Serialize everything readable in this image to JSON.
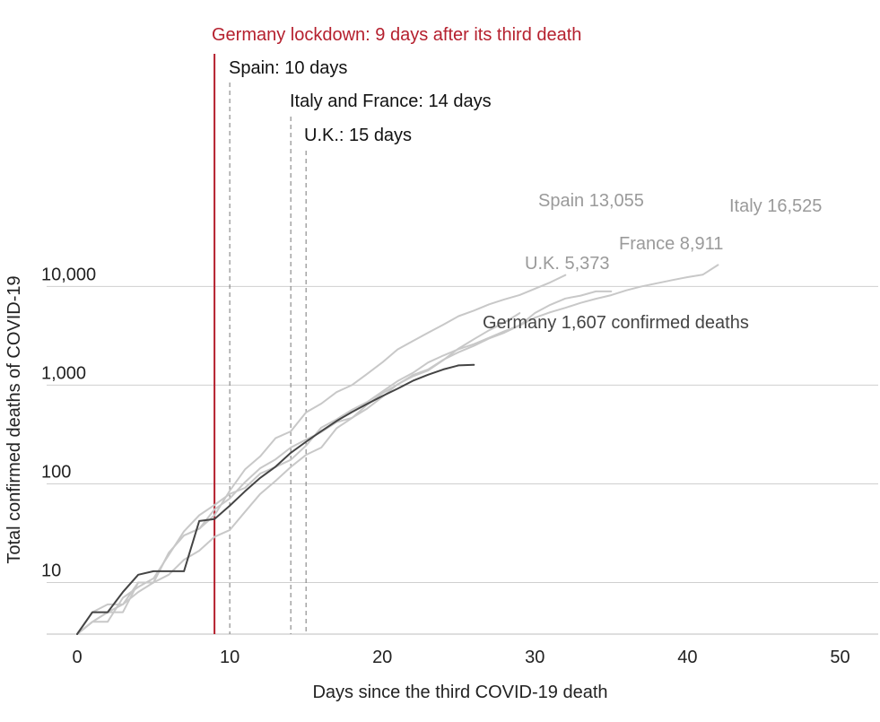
{
  "chart_data": {
    "type": "line",
    "xlabel": "Days since the third COVID-19 death",
    "ylabel": "Total confirmed deaths of COVID-19",
    "x_ticks": [
      0,
      10,
      20,
      30,
      40,
      50
    ],
    "y_ticks": [
      10,
      100,
      1000,
      10000
    ],
    "y_tick_labels": [
      "10",
      "100",
      "1,000",
      "10,000"
    ],
    "xlim": [
      -2,
      52.5
    ],
    "ylim": [
      3,
      8000000
    ],
    "yscale": "log",
    "grid": "horizontal",
    "lockdown": {
      "x": 9,
      "label": "Germany lockdown: 9 days after its third death",
      "color": "#b5202e"
    },
    "reference_lines": [
      {
        "x": 10,
        "label": "Spain: 10 days"
      },
      {
        "x": 14,
        "label": "Italy and France: 14 days"
      },
      {
        "x": 15,
        "label": "U.K.: 15 days"
      }
    ],
    "series": [
      {
        "name": "Spain",
        "end_label": "Spain 13,055",
        "color": "#c8c8c8",
        "highlight": false,
        "x": [
          0,
          1,
          2,
          3,
          4,
          5,
          6,
          7,
          8,
          9,
          10,
          11,
          12,
          13,
          14,
          15,
          16,
          17,
          18,
          19,
          20,
          21,
          22,
          23,
          24,
          25,
          26,
          27,
          28,
          29,
          30,
          31,
          32
        ],
        "y": [
          3,
          4,
          5,
          5,
          10,
          10,
          20,
          30,
          35,
          48,
          85,
          140,
          190,
          290,
          340,
          530,
          650,
          850,
          1000,
          1300,
          1700,
          2300,
          2800,
          3400,
          4100,
          5000,
          5700,
          6600,
          7400,
          8200,
          9500,
          11000,
          13055
        ]
      },
      {
        "name": "Italy",
        "end_label": "Italy 16,525",
        "color": "#c8c8c8",
        "highlight": false,
        "x": [
          0,
          1,
          2,
          3,
          4,
          5,
          6,
          7,
          8,
          9,
          10,
          11,
          12,
          13,
          14,
          15,
          16,
          17,
          18,
          19,
          20,
          21,
          22,
          23,
          24,
          25,
          26,
          27,
          28,
          29,
          30,
          31,
          32,
          33,
          34,
          35,
          36,
          37,
          38,
          39,
          40,
          41,
          42
        ],
        "y": [
          3,
          4,
          5,
          6,
          8,
          10,
          12,
          17,
          21,
          29,
          34,
          52,
          79,
          107,
          148,
          197,
          233,
          366,
          463,
          631,
          827,
          1016,
          1266,
          1441,
          1809,
          2158,
          2503,
          2978,
          3405,
          4032,
          4825,
          5476,
          6077,
          6820,
          7503,
          8165,
          9134,
          10023,
          10779,
          11591,
          12428,
          13155,
          16525
        ]
      },
      {
        "name": "France",
        "end_label": "France 8,911",
        "color": "#c8c8c8",
        "highlight": false,
        "x": [
          0,
          1,
          2,
          3,
          4,
          5,
          6,
          7,
          8,
          9,
          10,
          11,
          12,
          13,
          14,
          15,
          16,
          17,
          18,
          19,
          20,
          21,
          22,
          23,
          24,
          25,
          26,
          27,
          28,
          29,
          30,
          31,
          32,
          33,
          34,
          35
        ],
        "y": [
          3,
          4,
          4,
          7,
          9,
          11,
          19,
          33,
          48,
          61,
          79,
          91,
          127,
          148,
          175,
          244,
          372,
          450,
          562,
          674,
          860,
          1100,
          1331,
          1696,
          1995,
          2314,
          2606,
          3024,
          3523,
          4032,
          5387,
          6507,
          7560,
          8078,
          8911,
          8911
        ]
      },
      {
        "name": "U.K.",
        "end_label": "U.K.  5,373",
        "color": "#c8c8c8",
        "highlight": false,
        "x": [
          0,
          1,
          2,
          3,
          4,
          5,
          6,
          7,
          8,
          9,
          10,
          11,
          12,
          13,
          14,
          15,
          16,
          17,
          18,
          19,
          20,
          21,
          22,
          23,
          24,
          25,
          26,
          27,
          28,
          29
        ],
        "y": [
          3,
          5,
          6,
          6,
          10,
          10,
          20,
          30,
          35,
          55,
          71,
          104,
          144,
          177,
          233,
          281,
          335,
          422,
          465,
          578,
          759,
          1019,
          1228,
          1408,
          1789,
          2352,
          2921,
          3605,
          4313,
          5373
        ]
      },
      {
        "name": "Germany",
        "end_label": "Germany  1,607 confirmed deaths",
        "color": "#444444",
        "highlight": true,
        "x": [
          0,
          1,
          2,
          3,
          4,
          5,
          6,
          7,
          8,
          9,
          10,
          11,
          12,
          13,
          14,
          15,
          16,
          17,
          18,
          19,
          20,
          21,
          22,
          23,
          24,
          25,
          26
        ],
        "y": [
          3,
          5,
          5,
          8,
          12,
          13,
          13,
          13,
          42,
          44,
          60,
          84,
          115,
          149,
          206,
          267,
          342,
          433,
          533,
          645,
          775,
          920,
          1107,
          1275,
          1444,
          1584,
          1607
        ]
      }
    ]
  }
}
